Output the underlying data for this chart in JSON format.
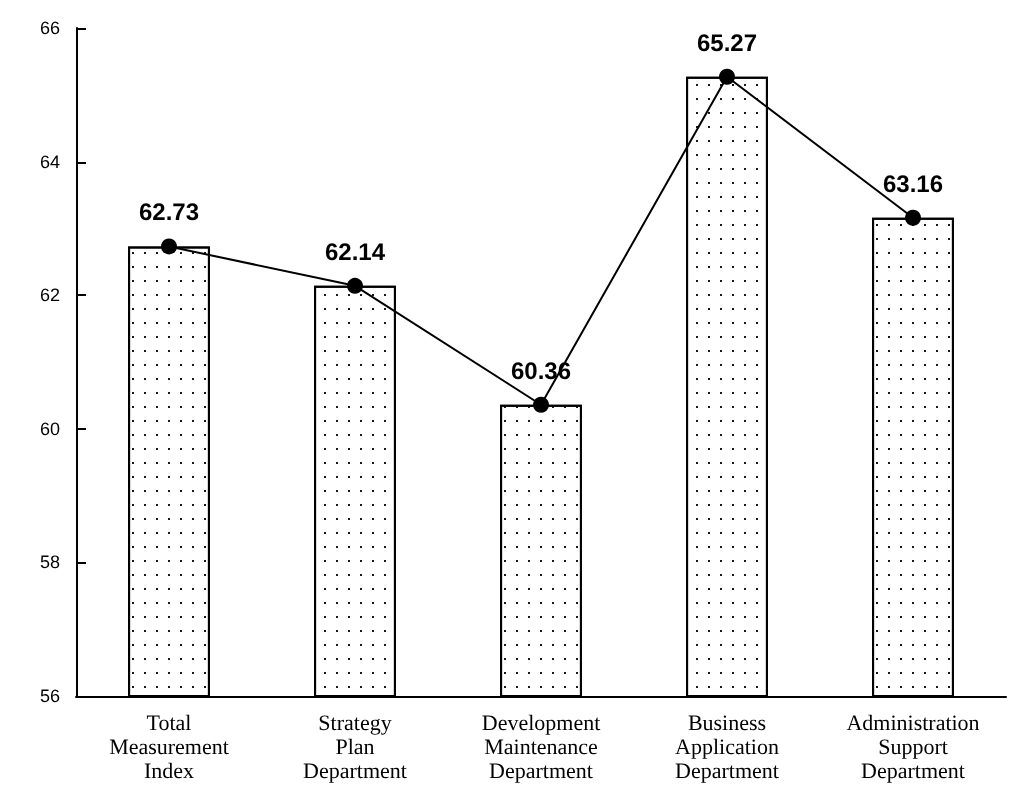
{
  "chart_data": {
    "type": "bar",
    "categories": [
      "Total Measurement Index",
      "Strategy Plan Department",
      "Development Maintenance Department",
      "Business Application Department",
      "Administration Support Department"
    ],
    "series": [
      {
        "color": "#ffffff",
        "values": [
          62.73,
          62.14,
          60.36,
          65.27,
          63.16
        ]
      },
      {
        "type": "line",
        "color": "#000000",
        "values": [
          62.73,
          62.14,
          60.36,
          65.27,
          63.16
        ],
        "value_labels": [
          "62.73",
          "62.14",
          "60.36",
          "65.27",
          "63.16"
        ],
        "marker": "circle",
        "line_style": "solid"
      }
    ],
    "ylim": [
      56,
      66
    ],
    "yticks": [
      56,
      58,
      60,
      62,
      64,
      66
    ],
    "grid": false
  }
}
